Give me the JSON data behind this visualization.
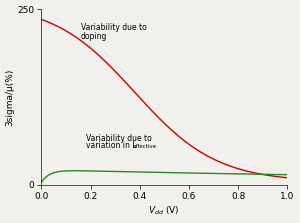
{
  "ylabel": "3sigma/μ(%)",
  "xlim": [
    0,
    1.0
  ],
  "ylim": [
    0,
    250
  ],
  "yticks": [
    0,
    250
  ],
  "xticks": [
    0,
    0.2,
    0.4,
    0.6,
    0.8,
    1.0
  ],
  "doping_color": "#cc0000",
  "leff_color": "#228B22",
  "doping_label_line1": "Variability due to",
  "doping_label_line2": "doping",
  "leff_label_line1": "Variability due to",
  "leff_label_line2": "variation in L",
  "leff_label_sub": "effective",
  "background_color": "#f2f0ec",
  "line_width": 1.0,
  "annotation_fontsize": 5.5,
  "tick_fontsize": 6.5
}
